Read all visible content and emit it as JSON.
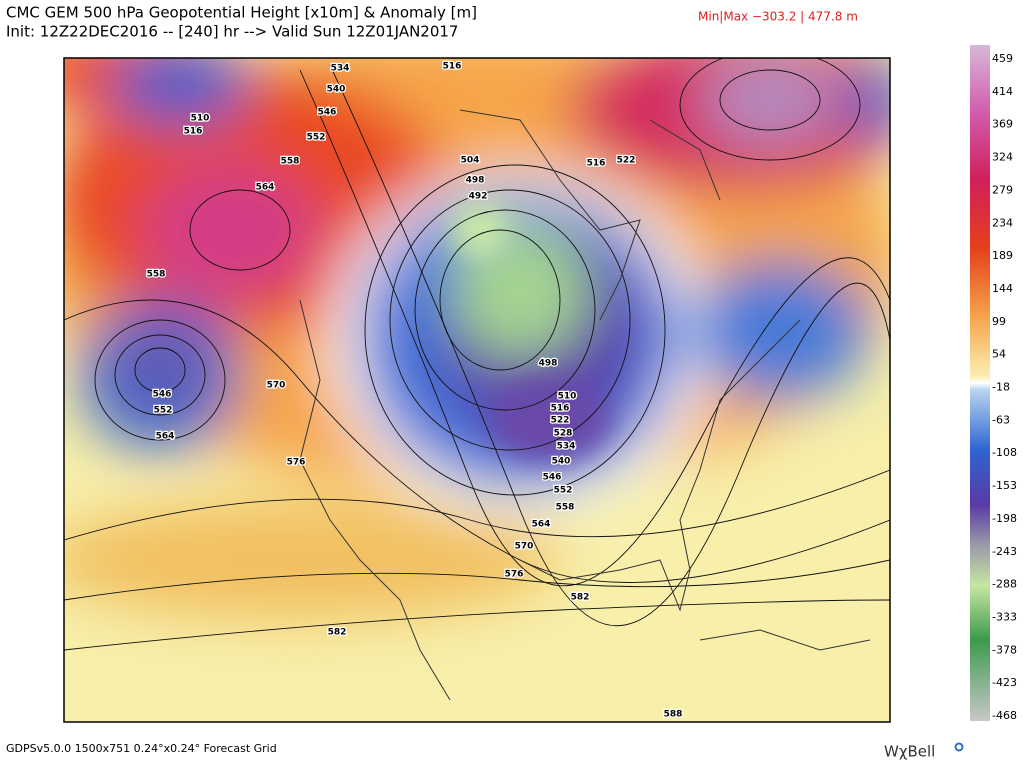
{
  "header": {
    "title": "CMC GEM 500 hPa Geopotential Height [x10m] & Anomaly [m]",
    "init": "Init: 12Z22DEC2016 -- [240] hr --> Valid Sun 12Z01JAN2017",
    "minmax": "Min|Max −303.2 | 477.8 m"
  },
  "colorbar": {
    "ticks": [
      459,
      414,
      369,
      324,
      279,
      234,
      189,
      144,
      99,
      54,
      -18,
      -63,
      -108,
      -153,
      -198,
      -243,
      -288,
      -333,
      -378,
      -423,
      -468
    ]
  },
  "contour_labels": [
    534,
    516,
    540,
    546,
    510,
    516,
    552,
    558,
    564,
    558,
    546,
    552,
    564,
    570,
    576,
    498,
    510,
    516,
    522,
    528,
    534,
    540,
    546,
    552,
    558,
    564,
    570,
    576,
    582,
    582,
    588,
    516,
    522,
    504,
    498,
    492
  ],
  "footer": {
    "grid": "GDPSv5.0.0 1500x751 0.24°x0.24° Forecast Grid",
    "logo": "WχBell"
  }
}
